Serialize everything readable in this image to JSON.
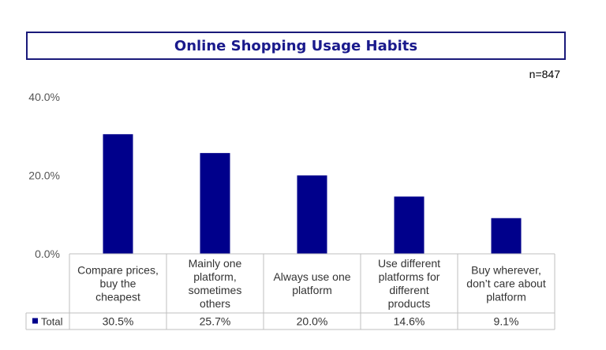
{
  "chart_data": {
    "type": "bar",
    "title": "Online Shopping Usage Habits",
    "sample_size": "n=847",
    "categories": [
      "Compare prices, buy the cheapest",
      "Mainly one platform, sometimes others",
      "Always use one platform",
      "Use different platforms for different products",
      "Buy wherever, don’t care about platform"
    ],
    "category_lines": [
      [
        "Compare prices,",
        "buy the",
        "cheapest"
      ],
      [
        "Mainly one",
        "platform,",
        "sometimes",
        "others"
      ],
      [
        "Always use one",
        "platform"
      ],
      [
        "Use different",
        "platforms for",
        "different",
        "products"
      ],
      [
        "Buy wherever,",
        "don’t care about",
        "platform"
      ]
    ],
    "series": [
      {
        "name": "Total",
        "values": [
          30.5,
          25.7,
          20.0,
          14.6,
          9.1
        ],
        "labels": [
          "30.5%",
          "25.7%",
          "20.0%",
          "14.6%",
          "9.1%"
        ],
        "color": "#00008b"
      }
    ],
    "ylim": [
      0,
      40
    ],
    "yticks": [
      0,
      20,
      40
    ],
    "ytick_labels": [
      "0.0%",
      "20.0%",
      "40.0%"
    ],
    "legend_placement": "data-table-left",
    "grid": false
  }
}
